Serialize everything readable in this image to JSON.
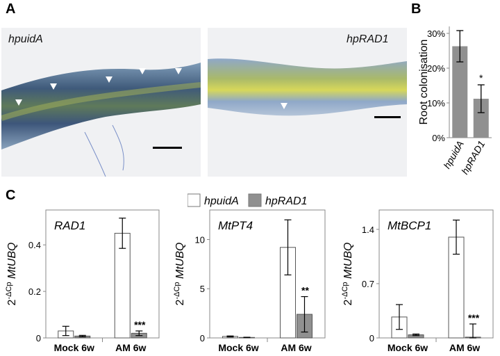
{
  "panels": {
    "A": "A",
    "B": "B",
    "C": "C"
  },
  "micrographs": [
    {
      "label": "hpuidA"
    },
    {
      "label": "hpRAD1"
    }
  ],
  "legend": {
    "items": [
      "hpuidA",
      "hpRAD1"
    ],
    "colors": [
      "#ffffff",
      "#909090"
    ]
  },
  "chart_data": [
    {
      "type": "bar",
      "panel": "B",
      "categories": [
        "hpuidA",
        "hpRAD1"
      ],
      "values": [
        26.3,
        11.2
      ],
      "errors": [
        4.5,
        4.0
      ],
      "significance": [
        "",
        "*"
      ],
      "ylabel": "Root colonisation",
      "ylim": [
        0,
        32
      ],
      "yticks": [
        "0%",
        "10%",
        "20%",
        "30%"
      ],
      "colors": [
        "#909090"
      ]
    },
    {
      "type": "bar",
      "panel": "C",
      "title": "RAD1",
      "ylabel": "2-ΔCp MtUBQ",
      "categories": [
        "Mock 6w",
        "AM 6w"
      ],
      "series": [
        {
          "name": "hpuidA",
          "values": [
            0.03,
            0.45
          ],
          "errors": [
            0.02,
            0.065
          ]
        },
        {
          "name": "hpRAD1",
          "values": [
            0.008,
            0.02
          ],
          "errors": [
            0.003,
            0.01
          ]
        }
      ],
      "significance": [
        "",
        "***"
      ],
      "ylim": [
        0,
        0.55
      ],
      "yticks": [
        "0",
        "0.2",
        "0.4"
      ]
    },
    {
      "type": "bar",
      "panel": "C",
      "title": "MtPT4",
      "ylabel": "2-ΔCp MtUBQ",
      "categories": [
        "Mock 6w",
        "AM 6w"
      ],
      "series": [
        {
          "name": "hpuidA",
          "values": [
            0.15,
            9.2
          ],
          "errors": [
            0.05,
            2.8
          ]
        },
        {
          "name": "hpRAD1",
          "values": [
            0.05,
            2.4
          ],
          "errors": [
            0.02,
            1.8
          ]
        }
      ],
      "significance": [
        "",
        "**"
      ],
      "ylim": [
        0,
        13
      ],
      "yticks": [
        "0",
        "5",
        "10"
      ]
    },
    {
      "type": "bar",
      "panel": "C",
      "title": "MtBCP1",
      "ylabel": "2-ΔCp MtUBQ",
      "categories": [
        "Mock 6w",
        "AM 6w"
      ],
      "series": [
        {
          "name": "hpuidA",
          "values": [
            0.27,
            1.3
          ],
          "errors": [
            0.16,
            0.22
          ]
        },
        {
          "name": "hpRAD1",
          "values": [
            0.04,
            0.01
          ],
          "errors": [
            0.01,
            0.17
          ]
        }
      ],
      "significance": [
        "",
        "***"
      ],
      "ylim": [
        0,
        1.65
      ],
      "yticks": [
        "0",
        "0.7",
        "1.4"
      ]
    }
  ]
}
